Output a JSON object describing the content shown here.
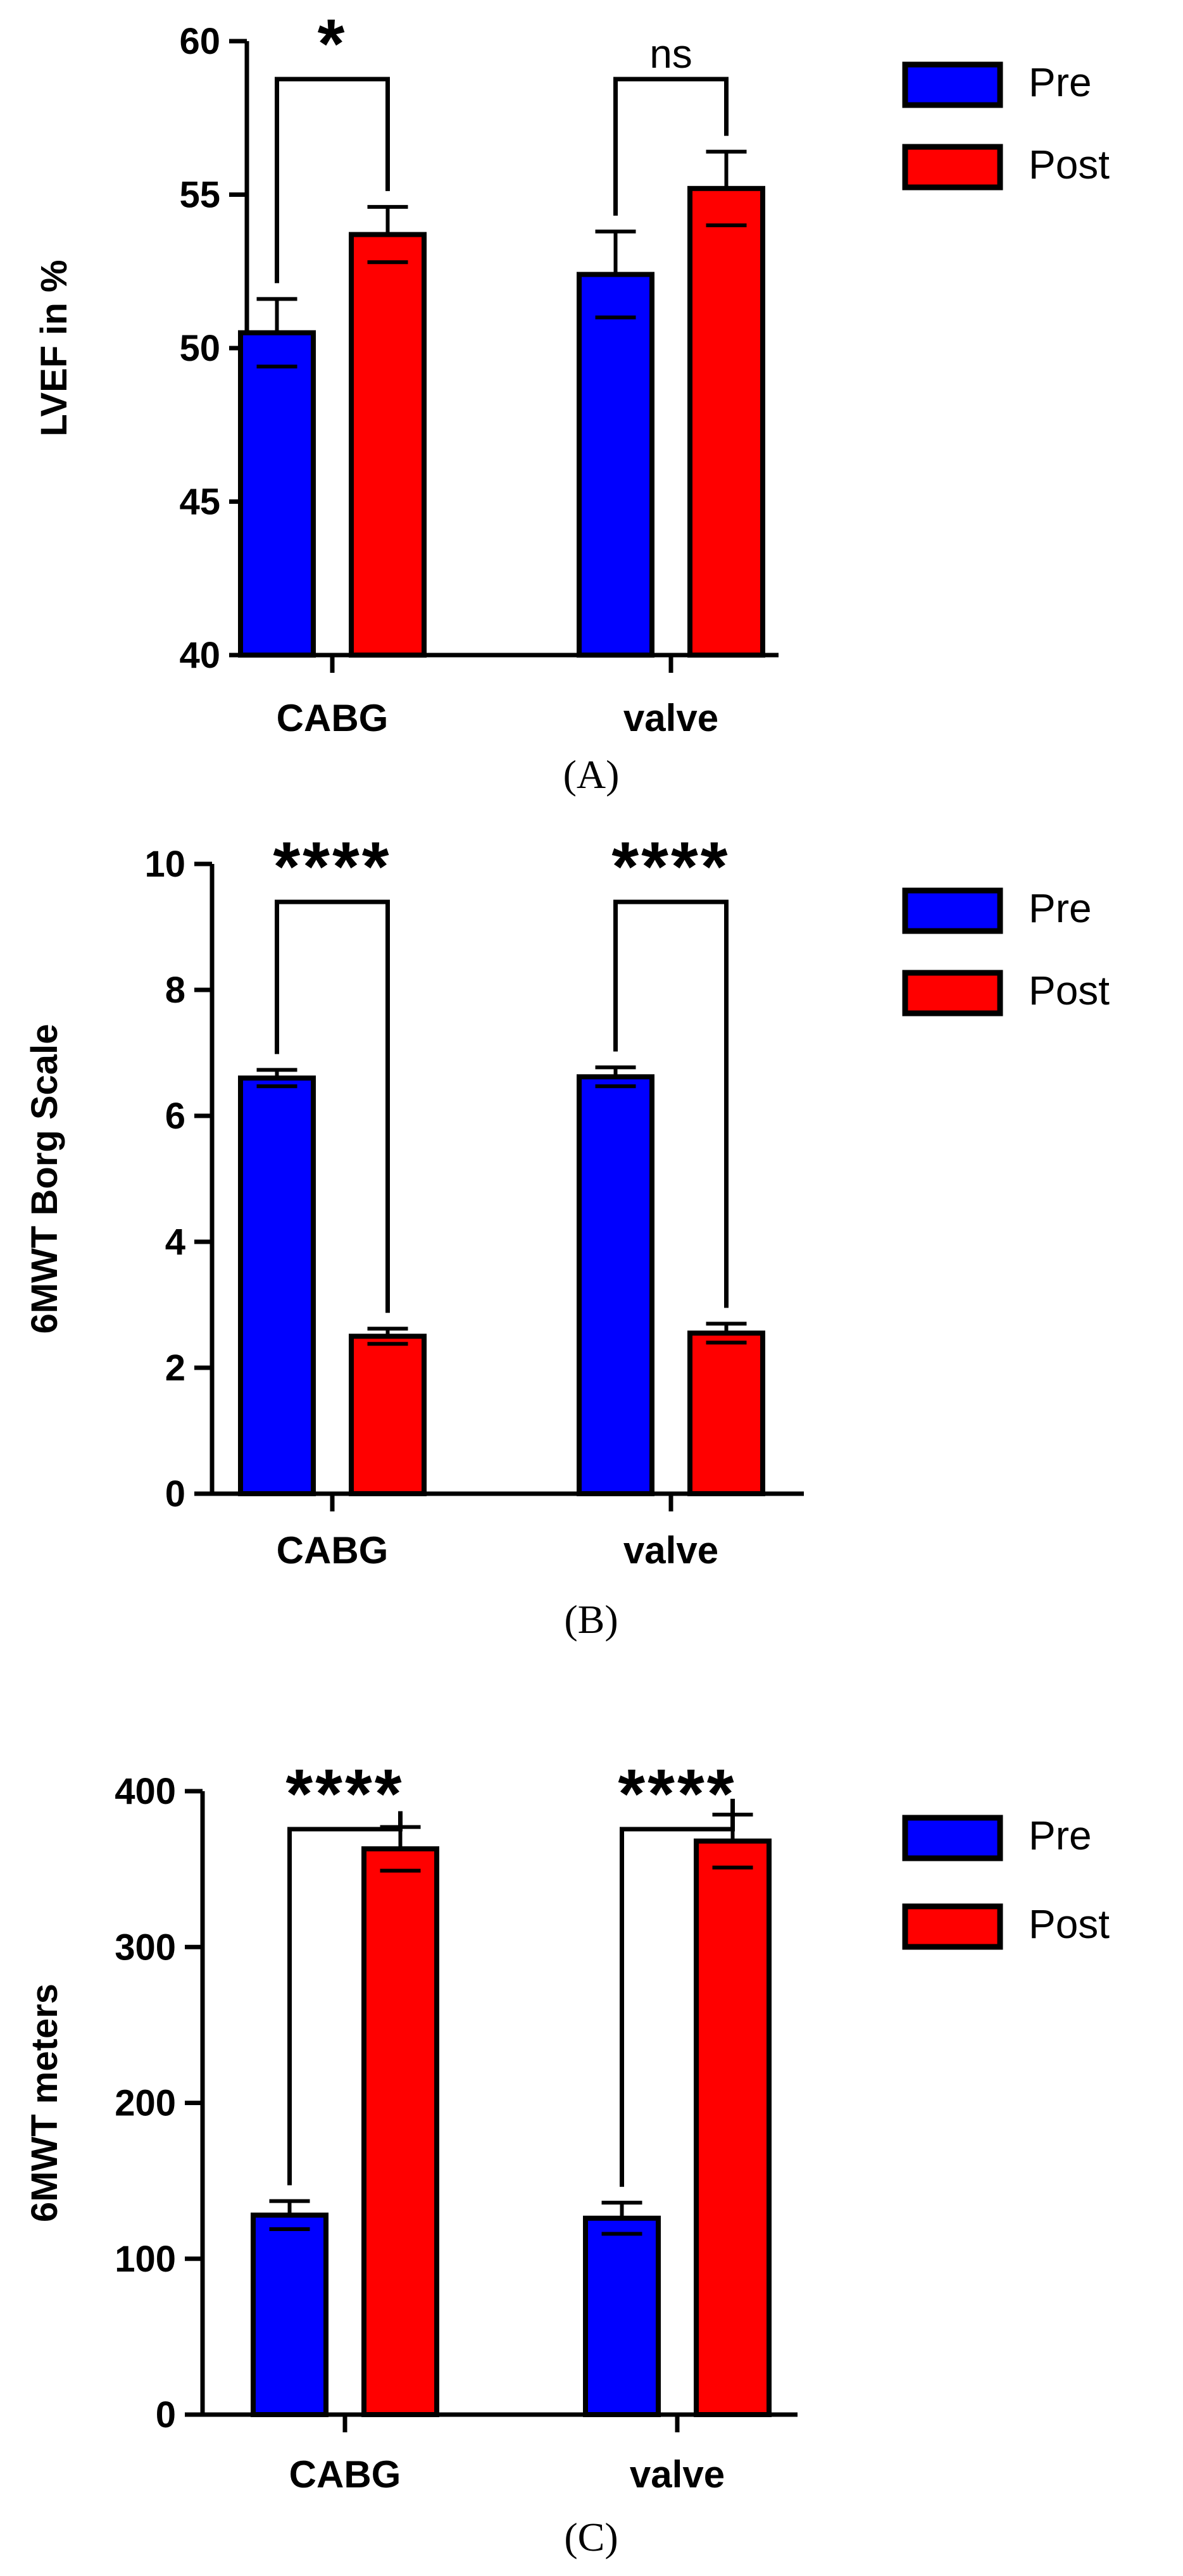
{
  "colors": {
    "pre": "#0000FF",
    "post": "#FF0000",
    "axis": "#000000"
  },
  "chart_data": [
    {
      "id": "A",
      "type": "bar",
      "caption": "(A)",
      "ylabel": "LVEF in %",
      "ylim": [
        40,
        60
      ],
      "yticks": [
        "40",
        "45",
        "50",
        "55",
        "60"
      ],
      "categories": [
        "CABG",
        "valve"
      ],
      "series": [
        {
          "name": "Pre",
          "values": [
            50.5,
            52.4
          ],
          "errors": [
            1.1,
            1.4
          ]
        },
        {
          "name": "Post",
          "values": [
            53.7,
            55.2
          ],
          "errors": [
            0.9,
            1.2
          ]
        }
      ],
      "significance": [
        "*",
        "ns"
      ],
      "legend_position": "top-right"
    },
    {
      "id": "B",
      "type": "bar",
      "caption": "(B)",
      "ylabel": "6MWT Borg Scale",
      "ylim": [
        0,
        10
      ],
      "yticks": [
        "0",
        "2",
        "4",
        "6",
        "8",
        "10"
      ],
      "categories": [
        "CABG",
        "valve"
      ],
      "series": [
        {
          "name": "Pre",
          "values": [
            6.6,
            6.62
          ],
          "errors": [
            0.13,
            0.15
          ]
        },
        {
          "name": "Post",
          "values": [
            2.5,
            2.55
          ],
          "errors": [
            0.12,
            0.15
          ]
        }
      ],
      "significance": [
        "****",
        "****"
      ],
      "legend_position": "top-right"
    },
    {
      "id": "C",
      "type": "bar",
      "caption": "(C)",
      "ylabel": "6MWT meters",
      "ylim": [
        0,
        400
      ],
      "yticks": [
        "0",
        "100",
        "200",
        "300",
        "400"
      ],
      "categories": [
        "CABG",
        "valve"
      ],
      "series": [
        {
          "name": "Pre",
          "values": [
            128,
            126
          ],
          "errors": [
            9,
            10
          ]
        },
        {
          "name": "Post",
          "values": [
            363,
            368
          ],
          "errors": [
            14,
            17
          ]
        }
      ],
      "significance": [
        "****",
        "****"
      ],
      "legend_position": "top-right"
    }
  ]
}
